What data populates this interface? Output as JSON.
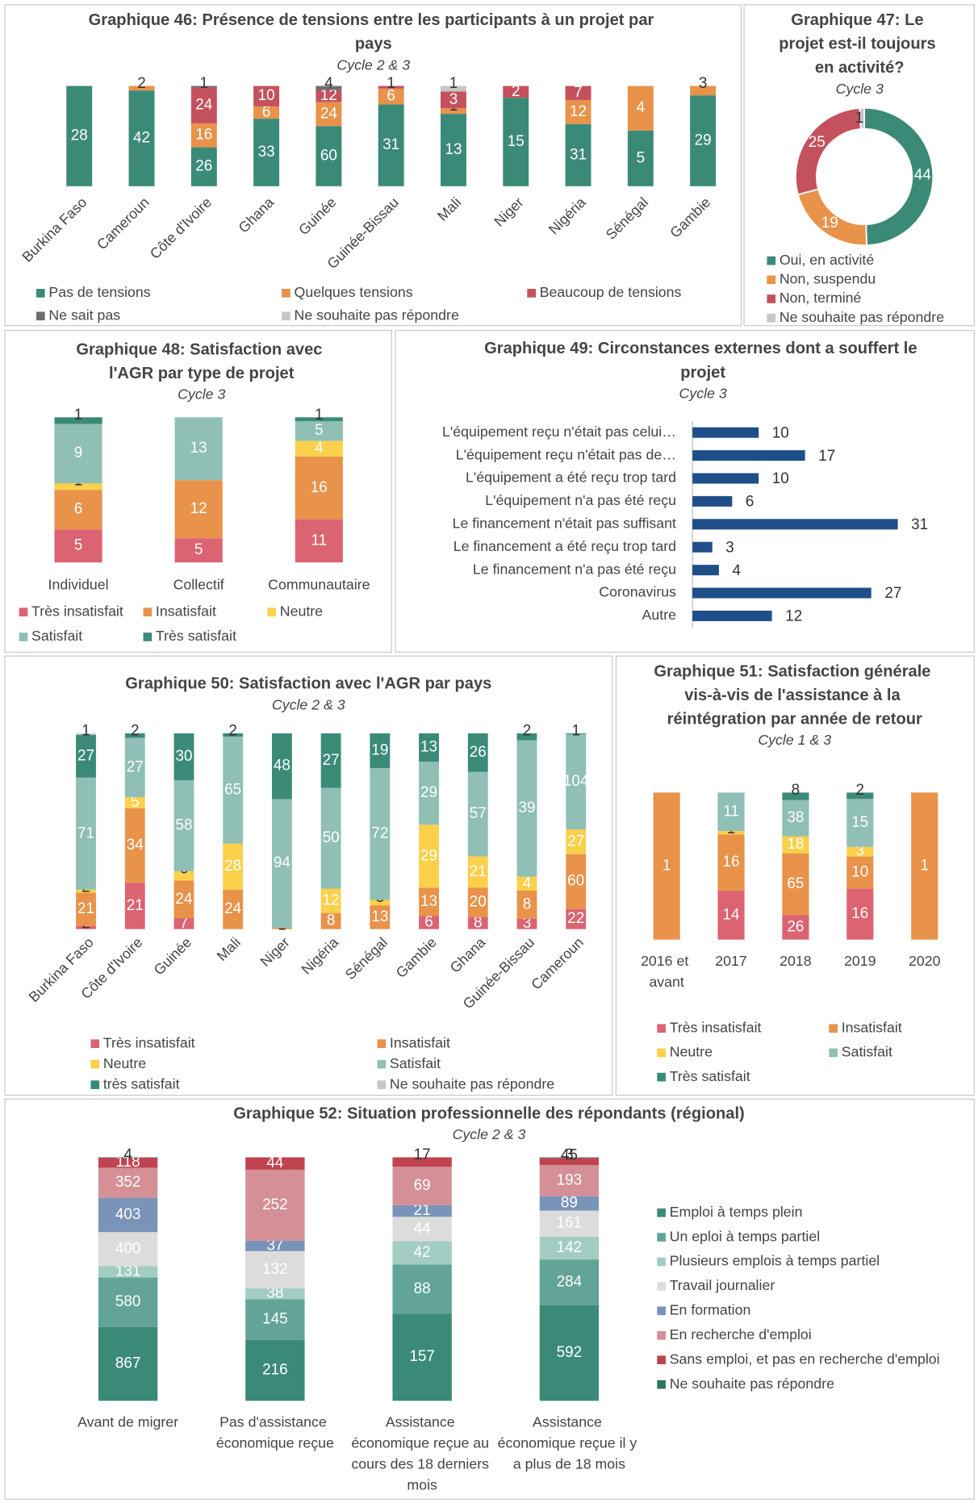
{
  "chart_data": [
    {
      "type": "bar",
      "stacked": true,
      "percent": true,
      "title": "Graphique 46: Présence de tensions entre les participants à un projet par pays",
      "subtitle": "Cycle 2 & 3",
      "categories": [
        "Burkina Faso",
        "Cameroun",
        "Côte d'Ivoire",
        "Ghana",
        "Guinée",
        "Guinée-Bissau",
        "Mali",
        "Niger",
        "Nigéria",
        "Sénégal",
        "Gambie"
      ],
      "series": [
        {
          "name": "Pas de tensions",
          "color": "#3b8a78",
          "values": [
            28,
            42,
            26,
            33,
            60,
            31,
            13,
            15,
            31,
            5,
            29
          ]
        },
        {
          "name": "Quelques tensions",
          "color": "#e8924a",
          "values": [
            null,
            2,
            16,
            6,
            24,
            6,
            1,
            null,
            12,
            4,
            3
          ]
        },
        {
          "name": "Beaucoup de tensions",
          "color": "#c4515e",
          "values": [
            null,
            null,
            24,
            10,
            12,
            1,
            3,
            2,
            7,
            null,
            null
          ]
        },
        {
          "name": "Ne sait pas",
          "color": "#6d6d6d",
          "values": [
            null,
            null,
            1,
            null,
            4,
            null,
            null,
            null,
            null,
            null,
            null
          ]
        },
        {
          "name": "Ne souhaite pas répondre",
          "color": "#c6c6c6",
          "values": [
            null,
            null,
            null,
            null,
            null,
            null,
            1,
            null,
            null,
            null,
            null
          ]
        }
      ]
    },
    {
      "type": "donut",
      "title": "Graphique 47: Le projet est-il toujours en activité?",
      "subtitle": "Cycle 3",
      "categories": [
        "Oui, en activité",
        "Non, suspendu",
        "Non, terminé",
        "Ne souhaite pas répondre"
      ],
      "values": [
        44,
        19,
        25,
        1
      ],
      "colors": [
        "#3b8a78",
        "#e8924a",
        "#c4515e",
        "#c6c6c6"
      ]
    },
    {
      "type": "bar",
      "stacked": true,
      "percent": true,
      "title": "Graphique 48: Satisfaction avec l'AGR par type de projet",
      "subtitle": "Cycle 3",
      "categories": [
        "Individuel",
        "Collectif",
        "Communautaire"
      ],
      "series": [
        {
          "name": "Très insatisfait",
          "color": "#dc6372",
          "values": [
            5,
            5,
            11
          ]
        },
        {
          "name": "Insatisfait",
          "color": "#e8924a",
          "values": [
            6,
            12,
            16
          ]
        },
        {
          "name": "Neutre",
          "color": "#fbd04a",
          "values": [
            1,
            null,
            4
          ]
        },
        {
          "name": "Satisfait",
          "color": "#8fbfb5",
          "values": [
            9,
            13,
            5
          ]
        },
        {
          "name": "Très satisfait",
          "color": "#3b8a78",
          "values": [
            1,
            null,
            1
          ]
        }
      ]
    },
    {
      "type": "hbar",
      "title": "Graphique 49: Circonstances externes dont a souffert le projet",
      "subtitle": "Cycle 3",
      "categories": [
        "L'équipement reçu n'était pas celui…",
        "L'équipement reçu n'était pas de…",
        "L'équipement a été reçu trop tard",
        "L'équipement n'a pas été reçu",
        "Le financement n'était pas suffisant",
        "Le financement a été reçu trop tard",
        "Le financement n'a pas été reçu",
        "Coronavirus",
        "Autre"
      ],
      "values": [
        10,
        17,
        10,
        6,
        31,
        3,
        4,
        27,
        12
      ],
      "color": "#1f4e89"
    },
    {
      "type": "bar",
      "stacked": true,
      "percent": true,
      "title": "Graphique 50: Satisfaction avec l'AGR par pays",
      "subtitle": "Cycle 2 & 3",
      "categories": [
        "Burkina Faso",
        "Côte d'Ivoire",
        "Guinée",
        "Mali",
        "Niger",
        "Nigéria",
        "Sénégal",
        "Gambie",
        "Ghana",
        "Guinée-Bissau",
        "Cameroun"
      ],
      "series": [
        {
          "name": "Très insatisfait",
          "color": "#dc6372",
          "values": [
            2,
            21,
            7,
            null,
            null,
            null,
            null,
            6,
            8,
            3,
            22
          ]
        },
        {
          "name": "Insatisfait",
          "color": "#e8924a",
          "values": [
            21,
            34,
            24,
            24,
            1,
            8,
            13,
            13,
            20,
            8,
            60
          ]
        },
        {
          "name": "Neutre",
          "color": "#fbd04a",
          "values": [
            2,
            5,
            6,
            28,
            null,
            12,
            3,
            29,
            21,
            4,
            27
          ]
        },
        {
          "name": "Satisfait",
          "color": "#8fbfb5",
          "values": [
            71,
            27,
            58,
            65,
            94,
            50,
            72,
            29,
            57,
            39,
            104
          ]
        },
        {
          "name": "très satisfait",
          "color": "#3b8a78",
          "values": [
            27,
            2,
            30,
            2,
            48,
            27,
            19,
            13,
            26,
            2,
            1
          ]
        },
        {
          "name": "Ne souhaite pas répondre",
          "color": "#c6c6c6",
          "values": [
            1,
            null,
            null,
            null,
            null,
            null,
            null,
            null,
            null,
            null,
            null
          ]
        }
      ]
    },
    {
      "type": "bar",
      "stacked": true,
      "percent": true,
      "title": "Graphique 51: Satisfaction générale vis-à-vis de l'assistance à la réintégration par année de retour",
      "subtitle": "Cycle 1 & 3",
      "categories": [
        "2016 et avant",
        "2017",
        "2018",
        "2019",
        "2020"
      ],
      "series": [
        {
          "name": "Très insatisfait",
          "color": "#dc6372",
          "values": [
            null,
            14,
            26,
            16,
            null
          ]
        },
        {
          "name": "Insatisfait",
          "color": "#e8924a",
          "values": [
            1,
            16,
            65,
            10,
            1
          ]
        },
        {
          "name": "Neutre",
          "color": "#fbd04a",
          "values": [
            null,
            1,
            18,
            3,
            null
          ]
        },
        {
          "name": "Satisfait",
          "color": "#8fbfb5",
          "values": [
            null,
            11,
            38,
            15,
            null
          ]
        },
        {
          "name": "Très satisfait",
          "color": "#3b8a78",
          "values": [
            null,
            null,
            8,
            2,
            null
          ]
        }
      ]
    },
    {
      "type": "bar",
      "stacked": true,
      "percent": true,
      "title": "Graphique 52: Situation professionnelle des répondants (régional)",
      "subtitle": "Cycle 2 & 3",
      "categories": [
        "Avant de migrer",
        "Pas d'assistance économique reçue",
        "Assistance économique reçue au cours des 18 derniers mois",
        "Assistance économique reçue il y a plus de 18 mois"
      ],
      "series": [
        {
          "name": "Emploi à temps plein",
          "color": "#3b8a78",
          "values": [
            867,
            216,
            157,
            592
          ]
        },
        {
          "name": "Un eploi à temps partiel",
          "color": "#62a497",
          "values": [
            580,
            145,
            88,
            284
          ]
        },
        {
          "name": "Plusieurs emplois à temps partiel",
          "color": "#a3ccc3",
          "values": [
            131,
            38,
            42,
            142
          ]
        },
        {
          "name": "Travail journalier",
          "color": "#dcdcdc",
          "values": [
            400,
            132,
            44,
            161
          ]
        },
        {
          "name": "En formation",
          "color": "#7a93b8",
          "values": [
            403,
            37,
            21,
            89
          ]
        },
        {
          "name": "En recherche d'emploi",
          "color": "#d48f97",
          "values": [
            352,
            252,
            69,
            193
          ]
        },
        {
          "name": "Sans emploi, et pas en recherche d'emploi",
          "color": "#c0444f",
          "values": [
            118,
            44,
            17,
            45
          ]
        },
        {
          "name": "Ne souhaite pas répondre",
          "color": "#2e7564",
          "values": [
            4,
            null,
            null,
            3
          ]
        }
      ]
    }
  ]
}
